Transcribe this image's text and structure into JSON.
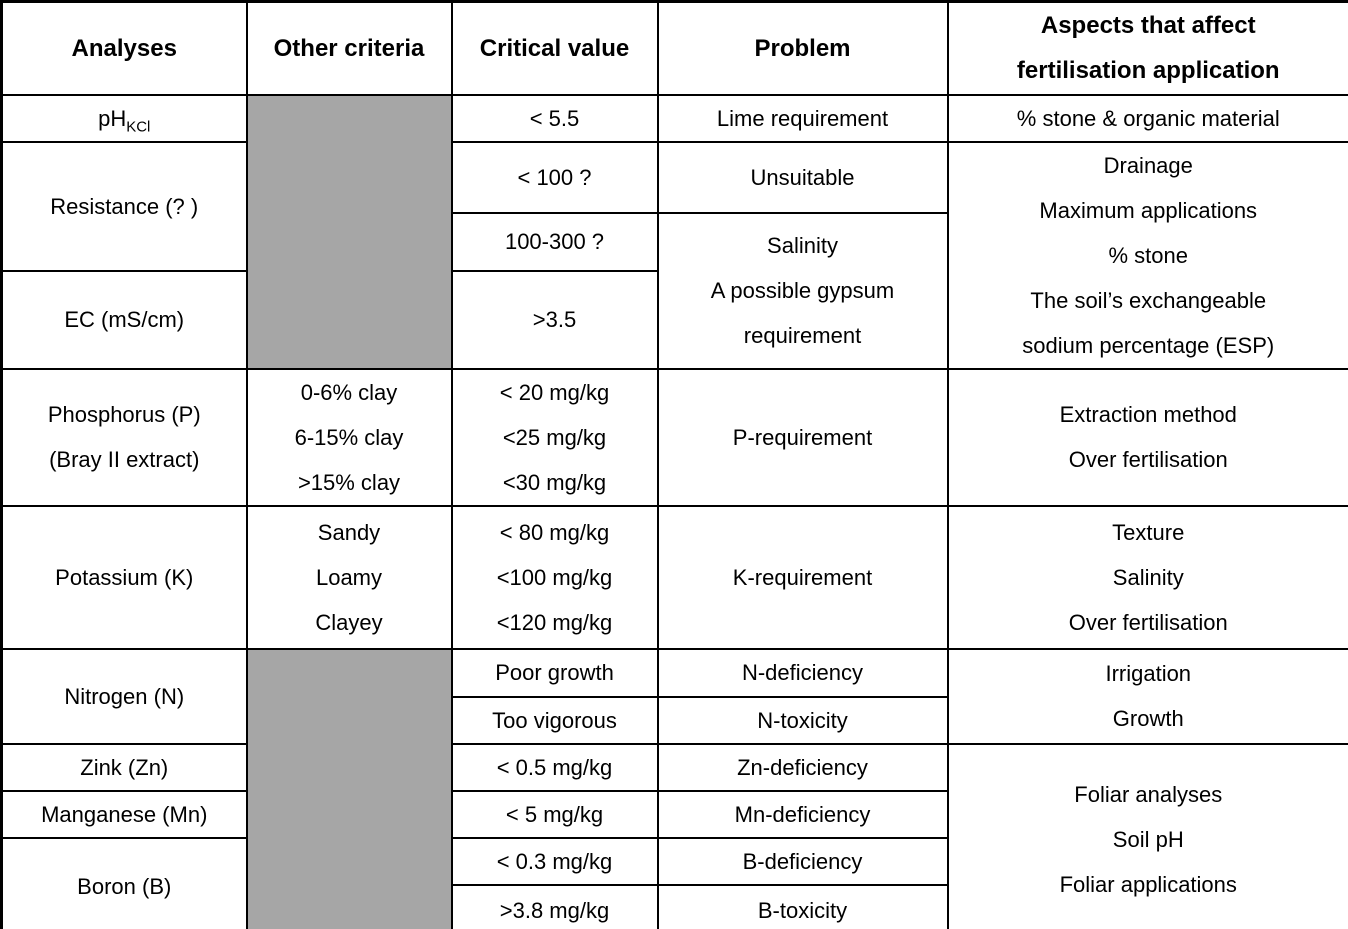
{
  "colors": {
    "merged_cell_gray": "#a6a6a6",
    "border": "#000000",
    "background": "#ffffff",
    "text": "#000000"
  },
  "header": {
    "analyses": "Analyses",
    "other_criteria": "Other criteria",
    "critical_value": "Critical value",
    "problem": "Problem",
    "aspects": [
      "Aspects that affect",
      "fertilisation application"
    ]
  },
  "rows": {
    "ph": {
      "analysis_base": "pH",
      "analysis_subscript": "KCl",
      "critical": "< 5.5",
      "problem": "Lime requirement",
      "aspects": "% stone & organic material"
    },
    "resistance": {
      "analysis": "Resistance (? )",
      "critical_1": "< 100 ?",
      "critical_2": "100-300 ?",
      "problem_1": "Unsuitable",
      "problem_2": [
        "Salinity",
        "A possible gypsum",
        "requirement"
      ],
      "aspects": [
        "Drainage",
        "Maximum applications",
        "% stone",
        "The soil’s exchangeable",
        "sodium percentage (ESP)"
      ]
    },
    "ec": {
      "analysis": "EC (mS/cm)",
      "critical": ">3.5"
    },
    "phosphorus": {
      "analysis": [
        "Phosphorus (P)",
        "(Bray II extract)"
      ],
      "criteria": [
        "0-6% clay",
        "6-15% clay",
        ">15% clay"
      ],
      "critical": [
        "< 20 mg/kg",
        "<25 mg/kg",
        "<30 mg/kg"
      ],
      "problem": "P-requirement",
      "aspects": [
        "Extraction method",
        "Over fertilisation"
      ]
    },
    "potassium": {
      "analysis": "Potassium (K)",
      "criteria": [
        "Sandy",
        "Loamy",
        "Clayey"
      ],
      "critical": [
        "< 80 mg/kg",
        "<100 mg/kg",
        "<120 mg/kg"
      ],
      "problem": "K-requirement",
      "aspects": [
        "Texture",
        "Salinity",
        "Over fertilisation"
      ]
    },
    "nitrogen": {
      "analysis": "Nitrogen (N)",
      "critical_1": "Poor growth",
      "critical_2": "Too vigorous",
      "problem_1": "N-deficiency",
      "problem_2": "N-toxicity",
      "aspects": [
        "Irrigation",
        "Growth"
      ]
    },
    "zinc": {
      "analysis": "Zink (Zn)",
      "critical": "< 0.5 mg/kg",
      "problem": "Zn-deficiency",
      "aspects": [
        "Foliar analyses",
        "Soil pH",
        "Foliar applications"
      ]
    },
    "manganese": {
      "analysis": "Manganese (Mn)",
      "critical": "< 5 mg/kg",
      "problem": "Mn-deficiency"
    },
    "boron": {
      "analysis": "Boron (B)",
      "critical_1": "< 0.3 mg/kg",
      "critical_2": ">3.8 mg/kg",
      "problem_1": "B-deficiency",
      "problem_2": "B-toxicity"
    }
  }
}
